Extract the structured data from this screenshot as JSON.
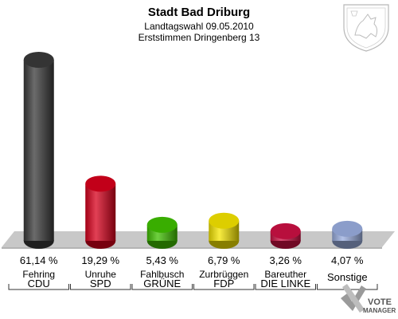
{
  "chart_data": {
    "type": "bar",
    "title": "Stadt Bad Driburg",
    "subtitle": "Landtagswahl 09.05.2010",
    "subtitle2": "Erststimmen Dringenberg 13",
    "ylim": [
      0,
      65
    ],
    "grid": false,
    "legend": "none",
    "categories": [
      {
        "party": "CDU",
        "candidate": "Fehring",
        "value": 61.14,
        "label": "61,14 %",
        "color": "#3a3a3a"
      },
      {
        "party": "SPD",
        "candidate": "Unruhe",
        "value": 19.29,
        "label": "19,29 %",
        "color": "#d8001c"
      },
      {
        "party": "GRÜNE",
        "candidate": "Fahlbusch",
        "value": 5.43,
        "label": "5,43 %",
        "color": "#3fc000"
      },
      {
        "party": "FDP",
        "candidate": "Zurbrüggen",
        "value": 6.79,
        "label": "6,79 %",
        "color": "#f5e500"
      },
      {
        "party": "DIE LINKE",
        "candidate": "Bareuther",
        "value": 3.26,
        "label": "3,26 %",
        "color": "#cc1144"
      },
      {
        "party": "Sonstige",
        "candidate": "",
        "value": 4.07,
        "label": "4,07 %",
        "color": "#9aaee0"
      }
    ]
  },
  "branding": {
    "logo_line1": "VOTE",
    "logo_line2": "MANAGER",
    "crest_icon": "coat-of-arms-icon",
    "logo_icon": "checkmark-x-icon"
  }
}
